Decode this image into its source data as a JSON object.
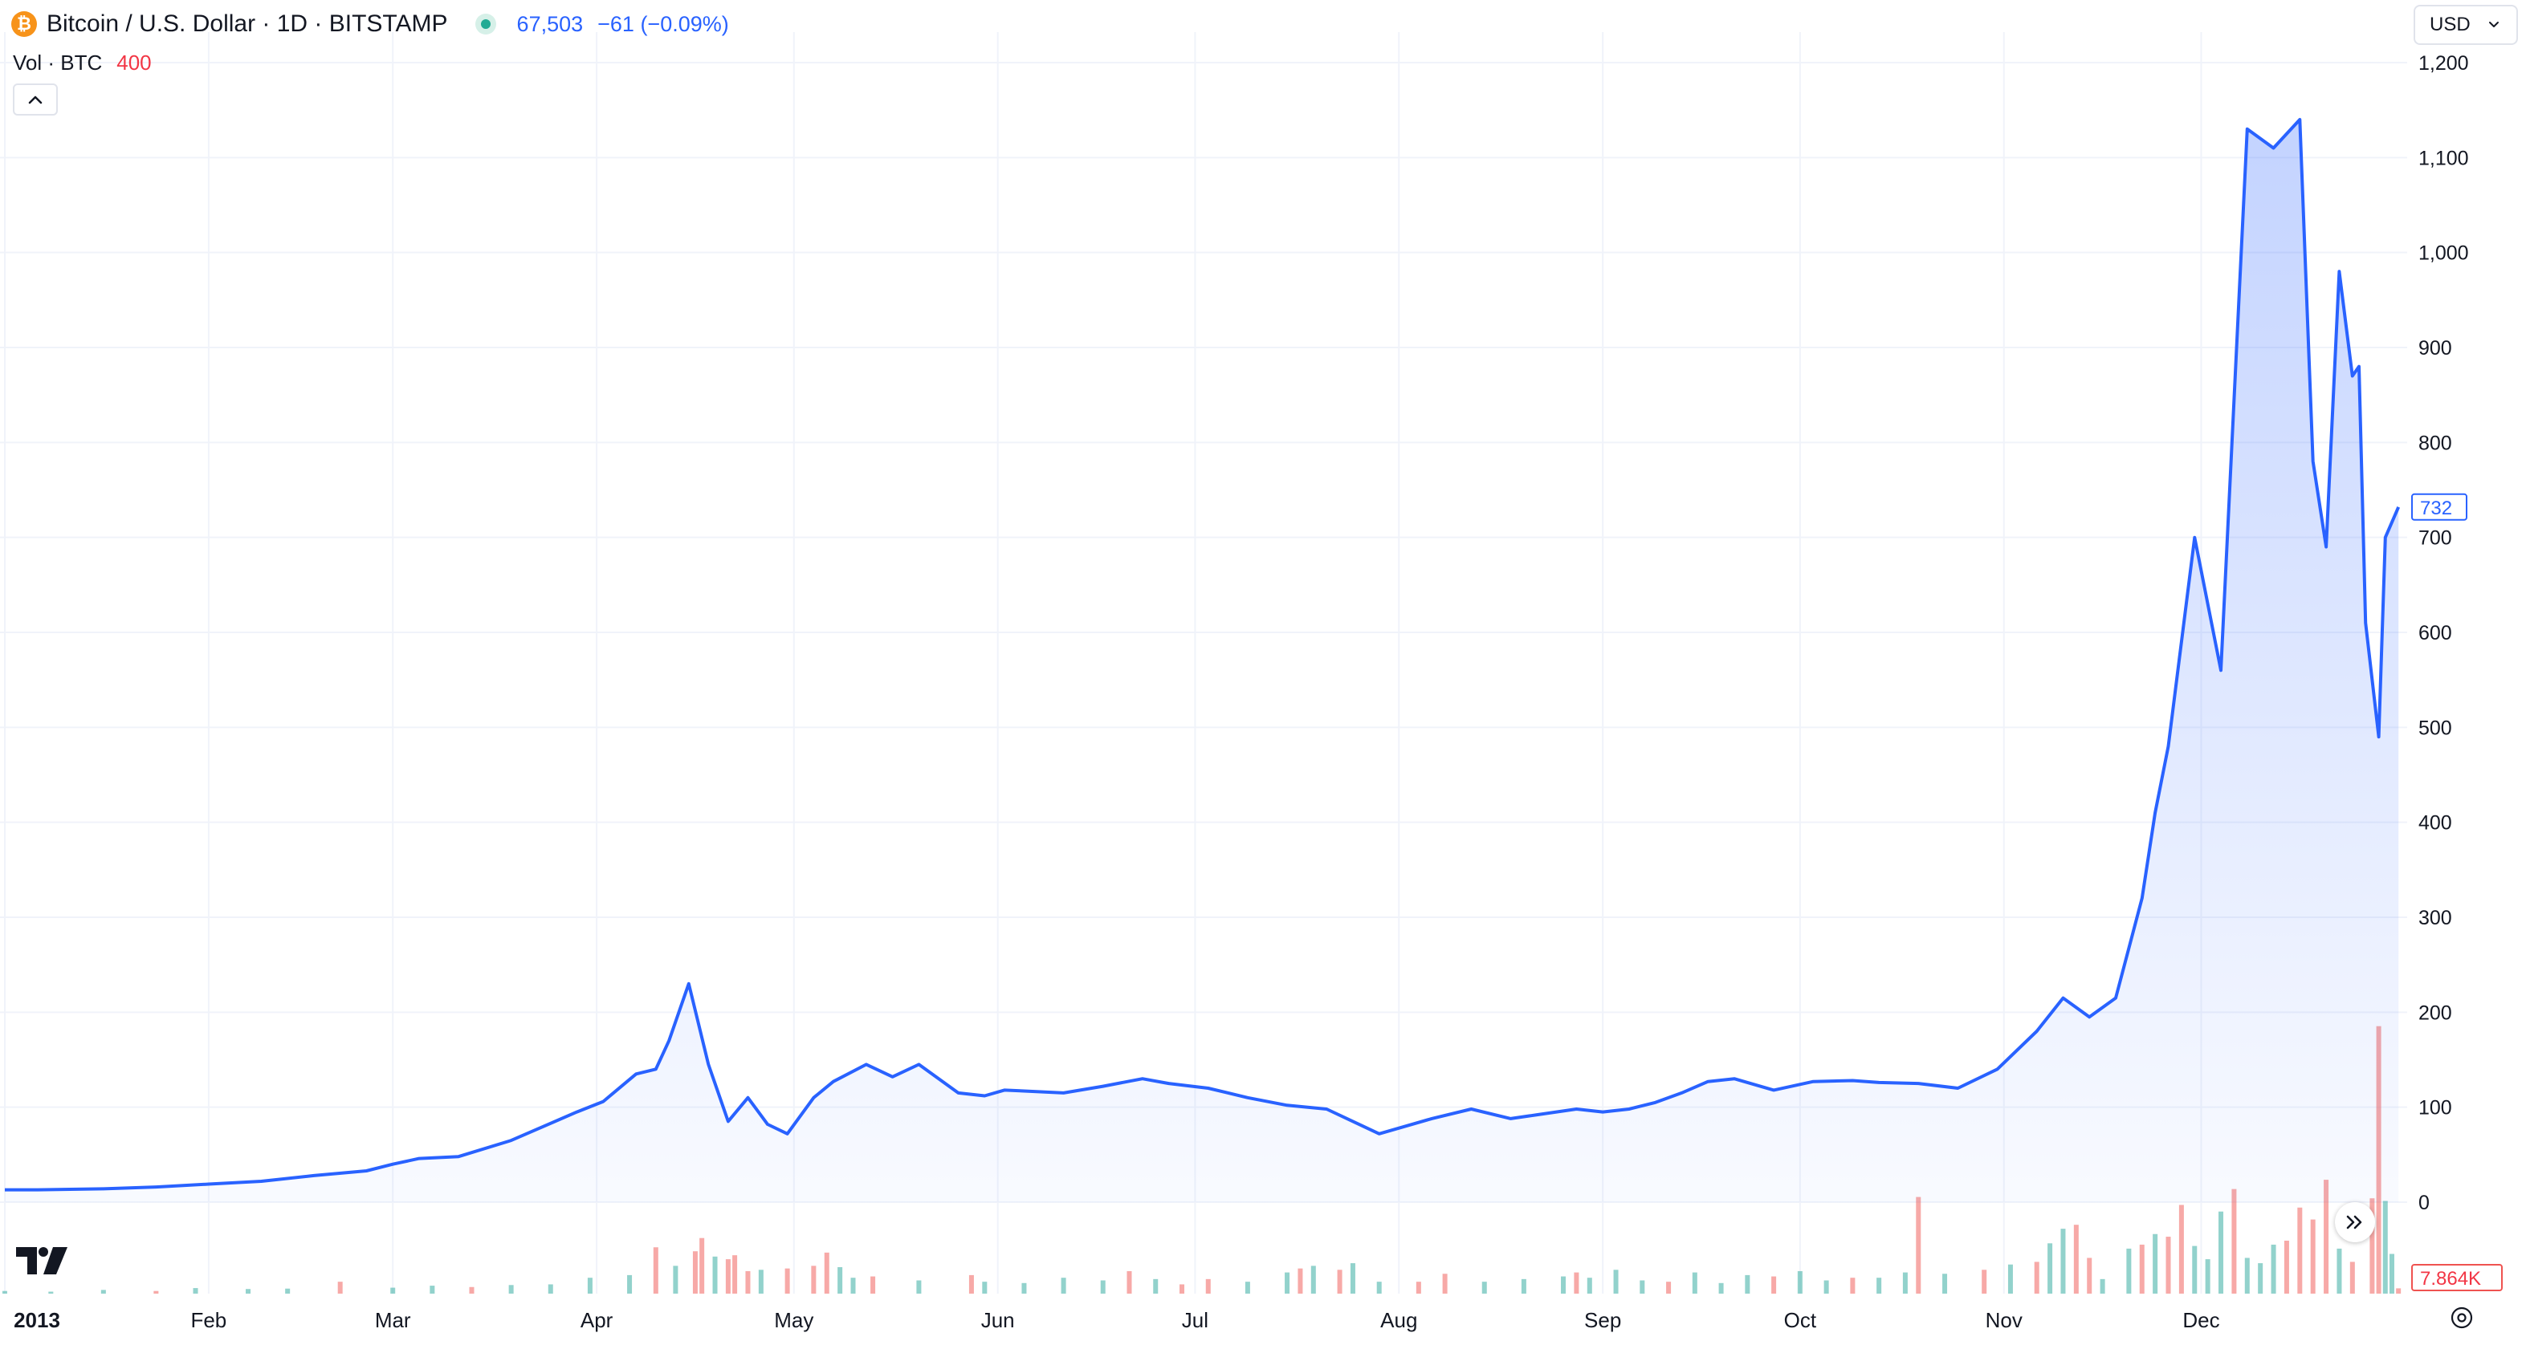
{
  "header": {
    "symbol_title": "Bitcoin / U.S. Dollar · 1D · BITSTAMP",
    "coin_icon": "bitcoin-icon",
    "status_dot_color": "#22ab94",
    "last_price": "67,503",
    "change": "−61 (−0.09%)"
  },
  "volume_legend": {
    "label": "Vol · BTC",
    "value": "400"
  },
  "currency": {
    "label": "USD"
  },
  "price_axis": {
    "ticks": [
      "1,200",
      "1,100",
      "1,000",
      "900",
      "800",
      "700",
      "600",
      "500",
      "400",
      "300",
      "200",
      "100",
      "0"
    ],
    "last_label": "732",
    "volume_label": "7.864K"
  },
  "time_axis": {
    "labels": [
      "2013",
      "Feb",
      "Mar",
      "Apr",
      "May",
      "Jun",
      "Jul",
      "Aug",
      "Sep",
      "Oct",
      "Nov",
      "Dec"
    ]
  },
  "colors": {
    "line": "#2962ff",
    "vol_up": "#26a69a",
    "vol_down": "#ef5350",
    "grid": "#f0f3fa"
  },
  "chart_data": {
    "type": "area",
    "title": "Bitcoin / U.S. Dollar · 1D · BITSTAMP",
    "xlabel": "",
    "ylabel": "",
    "ylim": [
      0,
      1200
    ],
    "y_ticks": [
      0,
      100,
      200,
      300,
      400,
      500,
      600,
      700,
      800,
      900,
      1000,
      1100,
      1200
    ],
    "x_ticks": [
      "2013",
      "Feb",
      "Mar",
      "Apr",
      "May",
      "Jun",
      "Jul",
      "Aug",
      "Sep",
      "Oct",
      "Nov",
      "Dec"
    ],
    "grid": true,
    "last_value": 732,
    "series": [
      {
        "name": "",
        "x": [
          1,
          6,
          16,
          24,
          32,
          40,
          48,
          56,
          60,
          64,
          70,
          78,
          88,
          92,
          97,
          100,
          102,
          105,
          108,
          111,
          114,
          117,
          120,
          124,
          127,
          132,
          136,
          140,
          146,
          150,
          153,
          156,
          162,
          168,
          174,
          178,
          184,
          190,
          196,
          202,
          210,
          218,
          224,
          230,
          234,
          240,
          244,
          248,
          252,
          256,
          260,
          264,
          270,
          276,
          282,
          286,
          292,
          298,
          304,
          310,
          314,
          318,
          322,
          326,
          328,
          330,
          334,
          338,
          342,
          346,
          350,
          352,
          354,
          356,
          358,
          359,
          360,
          362,
          363,
          365
        ],
        "values": [
          13,
          13,
          14,
          16,
          19,
          22,
          28,
          33,
          40,
          46,
          48,
          65,
          95,
          106,
          135,
          140,
          170,
          230,
          145,
          85,
          110,
          82,
          72,
          110,
          127,
          145,
          132,
          145,
          115,
          112,
          118,
          117,
          115,
          122,
          130,
          125,
          120,
          110,
          102,
          98,
          72,
          88,
          98,
          88,
          92,
          98,
          95,
          98,
          105,
          115,
          127,
          130,
          118,
          127,
          128,
          126,
          125,
          120,
          140,
          180,
          215,
          195,
          215,
          320,
          410,
          480,
          700,
          560,
          1130,
          1110,
          1140,
          780,
          690,
          980,
          870,
          880,
          610,
          490,
          700,
          732
        ]
      }
    ],
    "volume": {
      "name": "Vol · BTC",
      "last_value": 400,
      "ylim": [
        0,
        28000
      ],
      "values": [
        [
          1,
          200,
          "up"
        ],
        [
          8,
          150,
          "up"
        ],
        [
          16,
          280,
          "up"
        ],
        [
          24,
          200,
          "down"
        ],
        [
          30,
          420,
          "up"
        ],
        [
          38,
          350,
          "up"
        ],
        [
          44,
          380,
          "up"
        ],
        [
          52,
          900,
          "down"
        ],
        [
          60,
          450,
          "up"
        ],
        [
          66,
          600,
          "up"
        ],
        [
          72,
          500,
          "down"
        ],
        [
          78,
          650,
          "up"
        ],
        [
          84,
          700,
          "up"
        ],
        [
          90,
          1200,
          "up"
        ],
        [
          96,
          1400,
          "up"
        ],
        [
          100,
          3500,
          "down"
        ],
        [
          103,
          2100,
          "up"
        ],
        [
          106,
          3200,
          "down"
        ],
        [
          107,
          4200,
          "down"
        ],
        [
          109,
          2800,
          "up"
        ],
        [
          111,
          2600,
          "down"
        ],
        [
          112,
          2900,
          "down"
        ],
        [
          114,
          1700,
          "down"
        ],
        [
          116,
          1800,
          "up"
        ],
        [
          120,
          1900,
          "down"
        ],
        [
          124,
          2100,
          "down"
        ],
        [
          126,
          3100,
          "down"
        ],
        [
          128,
          2000,
          "up"
        ],
        [
          130,
          1200,
          "up"
        ],
        [
          133,
          1300,
          "down"
        ],
        [
          140,
          1000,
          "up"
        ],
        [
          148,
          1400,
          "down"
        ],
        [
          150,
          900,
          "up"
        ],
        [
          156,
          800,
          "up"
        ],
        [
          162,
          1200,
          "up"
        ],
        [
          168,
          1000,
          "up"
        ],
        [
          172,
          1700,
          "down"
        ],
        [
          176,
          1100,
          "up"
        ],
        [
          180,
          700,
          "down"
        ],
        [
          184,
          1100,
          "down"
        ],
        [
          190,
          900,
          "up"
        ],
        [
          196,
          1600,
          "up"
        ],
        [
          198,
          1900,
          "down"
        ],
        [
          200,
          2100,
          "up"
        ],
        [
          204,
          1800,
          "down"
        ],
        [
          206,
          2300,
          "up"
        ],
        [
          210,
          900,
          "up"
        ],
        [
          216,
          900,
          "down"
        ],
        [
          220,
          1500,
          "down"
        ],
        [
          226,
          900,
          "up"
        ],
        [
          232,
          1100,
          "up"
        ],
        [
          238,
          1300,
          "up"
        ],
        [
          240,
          1600,
          "down"
        ],
        [
          242,
          1200,
          "up"
        ],
        [
          246,
          1800,
          "up"
        ],
        [
          250,
          1000,
          "up"
        ],
        [
          254,
          900,
          "down"
        ],
        [
          258,
          1600,
          "up"
        ],
        [
          262,
          800,
          "up"
        ],
        [
          266,
          1400,
          "up"
        ],
        [
          270,
          1300,
          "down"
        ],
        [
          274,
          1700,
          "up"
        ],
        [
          278,
          1000,
          "up"
        ],
        [
          282,
          1200,
          "down"
        ],
        [
          286,
          1200,
          "up"
        ],
        [
          290,
          1600,
          "up"
        ],
        [
          292,
          7300,
          "down"
        ],
        [
          296,
          1500,
          "up"
        ],
        [
          302,
          1800,
          "down"
        ],
        [
          306,
          2200,
          "up"
        ],
        [
          310,
          2400,
          "down"
        ],
        [
          312,
          3800,
          "up"
        ],
        [
          314,
          4900,
          "up"
        ],
        [
          316,
          5200,
          "down"
        ],
        [
          318,
          2700,
          "down"
        ],
        [
          320,
          1100,
          "up"
        ],
        [
          324,
          3400,
          "up"
        ],
        [
          326,
          3700,
          "down"
        ],
        [
          328,
          4500,
          "up"
        ],
        [
          330,
          4300,
          "down"
        ],
        [
          332,
          6700,
          "down"
        ],
        [
          334,
          3600,
          "up"
        ],
        [
          336,
          2600,
          "up"
        ],
        [
          338,
          6200,
          "up"
        ],
        [
          340,
          7900,
          "down"
        ],
        [
          342,
          2700,
          "up"
        ],
        [
          344,
          2300,
          "up"
        ],
        [
          346,
          3700,
          "up"
        ],
        [
          348,
          4000,
          "down"
        ],
        [
          350,
          6500,
          "down"
        ],
        [
          352,
          5600,
          "down"
        ],
        [
          354,
          8600,
          "down"
        ],
        [
          356,
          3400,
          "up"
        ],
        [
          358,
          2400,
          "down"
        ],
        [
          361,
          7200,
          "down"
        ],
        [
          362,
          20200,
          "down"
        ],
        [
          363,
          7000,
          "up"
        ],
        [
          364,
          3000,
          "up"
        ],
        [
          365,
          400,
          "down"
        ]
      ]
    }
  }
}
